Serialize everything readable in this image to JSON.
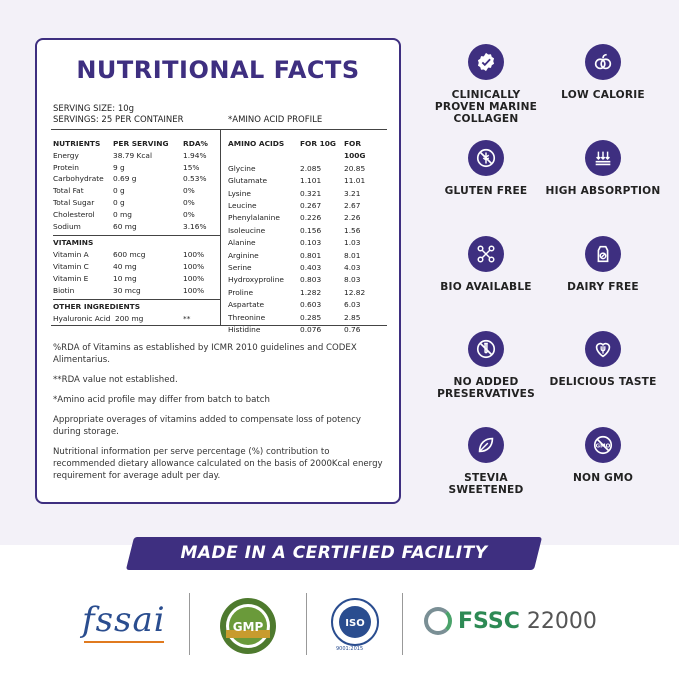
{
  "card": {
    "title": "NUTRITIONAL FACTS",
    "serving_size": "SERVING SIZE: 10g",
    "servings": "SERVINGS: 25 PER CONTAINER",
    "amino_label": "*AMINO ACID PROFILE",
    "nutrients_header": [
      "NUTRIENTS",
      "PER SERVING",
      "RDA%"
    ],
    "nutrients": [
      [
        "Energy",
        "38.79 Kcal",
        "1.94%"
      ],
      [
        "Protein",
        "9 g",
        "15%"
      ],
      [
        "Carbohydrate",
        "0.69 g",
        "0.53%"
      ],
      [
        "Total Fat",
        "0 g",
        "0%"
      ],
      [
        "Total Sugar",
        "0 g",
        "0%"
      ],
      [
        "Cholesterol",
        "0 mg",
        "0%"
      ],
      [
        "Sodium",
        "60 mg",
        "3.16%"
      ]
    ],
    "vitamins_header": "VITAMINS",
    "vitamins": [
      [
        "Vitamin A",
        "600 mcg",
        "100%"
      ],
      [
        "Vitamin C",
        "40 mg",
        "100%"
      ],
      [
        "Vitamin E",
        "10 mg",
        "100%"
      ],
      [
        "Biotin",
        "30 mcg",
        "100%"
      ]
    ],
    "other_header": "OTHER INGREDIENTS",
    "other": [
      [
        "Hyaluronic Acid",
        "200 mg",
        "**"
      ]
    ],
    "amino_header": [
      "AMINO ACIDS",
      "FOR 10G",
      "FOR 100G"
    ],
    "amino": [
      [
        "Glycine",
        "2.085",
        "20.85"
      ],
      [
        "Glutamate",
        "1.101",
        "11.01"
      ],
      [
        "Lysine",
        "0.321",
        "3.21"
      ],
      [
        "Leucine",
        "0.267",
        "2.67"
      ],
      [
        "Phenylalanine",
        "0.226",
        "2.26"
      ],
      [
        "Isoleucine",
        "0.156",
        "1.56"
      ],
      [
        "Alanine",
        "0.103",
        "1.03"
      ],
      [
        "Arginine",
        "0.801",
        "8.01"
      ],
      [
        "Serine",
        "0.403",
        "4.03"
      ],
      [
        "Hydroxyproline",
        "0.803",
        "8.03"
      ],
      [
        "Proline",
        "1.282",
        "12.82"
      ],
      [
        "Aspartate",
        "0.603",
        "6.03"
      ],
      [
        "Threonine",
        "0.285",
        "2.85"
      ],
      [
        "Histidine",
        "0.076",
        "0.76"
      ]
    ],
    "notes": [
      "%RDA of Vitamins as established by ICMR 2010 guidelines and CODEX Alimentarius.",
      "**RDA value not established.",
      "*Amino acid profile may differ from batch to batch",
      "Appropriate overages of vitamins added to compensate loss of potency during storage.",
      "Nutritional information per serve percentage (%) contribution to recommended dietary allowance calculated on the basis of 2000Kcal energy requirement for average adult per day."
    ]
  },
  "features": [
    {
      "label": "CLINICALLY PROVEN MARINE COLLAGEN",
      "icon": "badge-check-icon"
    },
    {
      "label": "LOW CALORIE",
      "icon": "apple-icon"
    },
    {
      "label": "GLUTEN FREE",
      "icon": "wheat-crossed-icon"
    },
    {
      "label": "HIGH ABSORPTION",
      "icon": "absorption-icon"
    },
    {
      "label": "BIO AVAILABLE",
      "icon": "molecule-icon"
    },
    {
      "label": "DAIRY FREE",
      "icon": "milk-carton-icon"
    },
    {
      "label": "NO ADDED PRESERVATIVES",
      "icon": "test-tube-crossed-icon"
    },
    {
      "label": "DELICIOUS TASTE",
      "icon": "heart-fork-icon"
    },
    {
      "label": "STEVIA SWEETENED",
      "icon": "leaf-icon"
    },
    {
      "label": "NON GMO",
      "icon": "gmo-crossed-icon"
    }
  ],
  "banner": "MADE IN A CERTIFIED FACILITY",
  "certs": {
    "fssai": "fssai",
    "gmp": "GMP",
    "iso": "ISO",
    "iso_sub": "9001:2015",
    "fssc_a": "FSSC",
    "fssc_b": " 22000"
  },
  "colors": {
    "brand": "#3e2f80",
    "background": "#f3f1f8"
  }
}
